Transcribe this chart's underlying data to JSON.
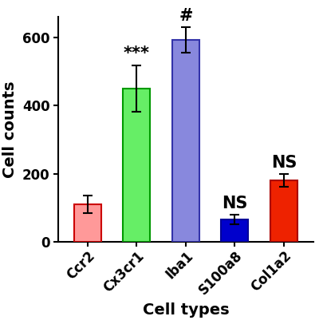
{
  "categories": [
    "Ccr2",
    "Cx3cr1",
    "Iba1",
    "S100a8",
    "Col1a2"
  ],
  "values": [
    110,
    450,
    592,
    65,
    180
  ],
  "errors": [
    25,
    68,
    38,
    14,
    18
  ],
  "bar_colors": [
    "#FF9999",
    "#66EE66",
    "#8888DD",
    "#0000CC",
    "#EE2200"
  ],
  "edge_colors": [
    "#CC0000",
    "#009900",
    "#3333AA",
    "#000099",
    "#AA0000"
  ],
  "annotations": [
    "",
    "***",
    "#",
    "NS",
    "NS"
  ],
  "annotation_fontsize": 15,
  "annotation_bold": true,
  "ylabel": "Cell counts",
  "xlabel": "Cell types",
  "ylim": [
    0,
    660
  ],
  "yticks": [
    0,
    200,
    400,
    600
  ],
  "ylabel_fontsize": 14,
  "xlabel_fontsize": 14,
  "tick_fontsize": 12,
  "bar_width": 0.55,
  "background_color": "#ffffff",
  "xticklabel_rotation": 45,
  "xticklabel_ha": "right"
}
